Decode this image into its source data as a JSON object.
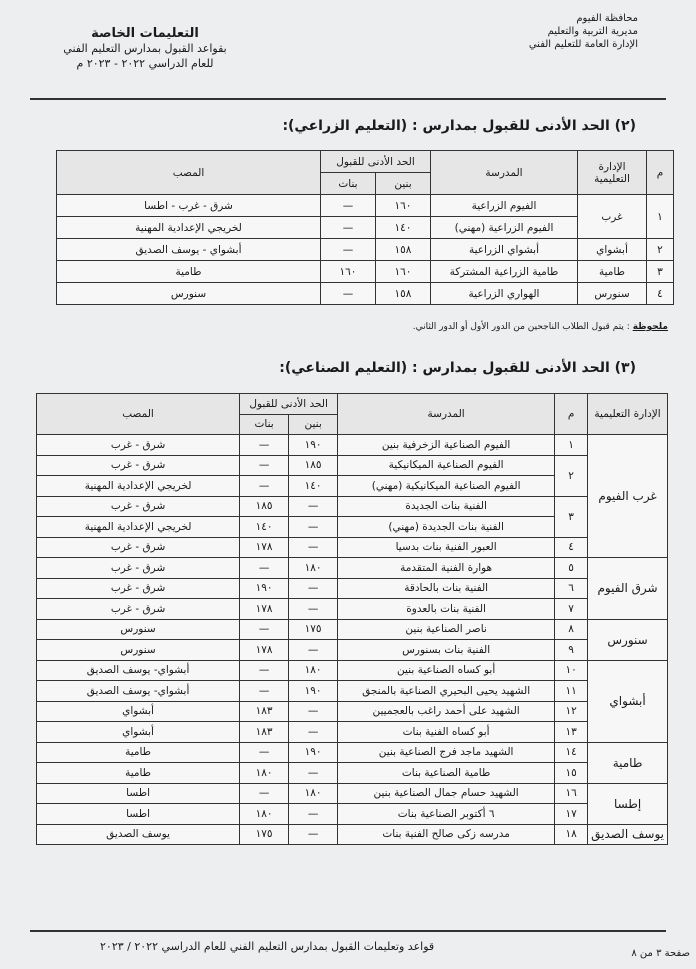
{
  "header": {
    "governorate": "محافظة الفيوم",
    "directorate": "مديرية التربية والتعليم",
    "administration": "الإدارة العامة للتعليم الفني",
    "title": "التعليمات الخاصة",
    "subtitle": "بقواعد القبول بمدارس التعليم الفني",
    "year": "للعام الدراسي ٢٠٢٢ - ٢٠٢٣ م"
  },
  "section2": {
    "title": "(٢) الحد الأدنى للقبول بمدارس : (التعليم الزراعي):",
    "table": {
      "headers": {
        "num": "م",
        "idara": "الإدارة التعليمية",
        "school": "المدرسة",
        "min": "الحد الأدنى للقبول",
        "boys": "بنين",
        "girls": "بنات",
        "dest": "المصب"
      },
      "groups": [
        {
          "num": "١",
          "idara": "غرب",
          "rows": [
            {
              "school": "الفيوم الزراعية",
              "boys": "١٦٠",
              "girls": "—",
              "dest": "شرق - غرب - اطسا"
            },
            {
              "school": "الفيوم الزراعية (مهني)",
              "boys": "١٤٠",
              "girls": "—",
              "dest": "لخريجي الإعدادية المهنية"
            }
          ]
        },
        {
          "num": "٢",
          "idara": "أبشواي",
          "rows": [
            {
              "school": "أبشواي الزراعية",
              "boys": "١٥٨",
              "girls": "—",
              "dest": "أبشواي - يوسف الصديق"
            }
          ]
        },
        {
          "num": "٣",
          "idara": "طامية",
          "rows": [
            {
              "school": "طامية الزراعية المشتركة",
              "boys": "١٦٠",
              "girls": "١٦٠",
              "dest": "طامية"
            }
          ]
        },
        {
          "num": "٤",
          "idara": "سنورس",
          "rows": [
            {
              "school": "الهواري الزراعية",
              "boys": "١٥٨",
              "girls": "—",
              "dest": "سنورس"
            }
          ]
        }
      ]
    },
    "note_label": "ملحوظة",
    "note": ": يتم قبول الطلاب الناجحين من الدور الأول أو الدور الثاني."
  },
  "section3": {
    "title": "(٣) الحد الأدنى للقبول بمدارس : (التعليم الصناعي):",
    "table": {
      "headers": {
        "idara": "الإدارة التعليمية",
        "num": "م",
        "school": "المدرسة",
        "min": "الحد الأدنى للقبول",
        "boys": "بنين",
        "girls": "بنات",
        "dest": "المصب"
      },
      "groups": [
        {
          "idara": "غرب الفيوم",
          "schools": [
            {
              "num": "١",
              "rows": [
                {
                  "school": "الفيوم الصناعية الزخرفية بنين",
                  "boys": "١٩٠",
                  "girls": "—",
                  "dest": "شرق - غرب"
                }
              ]
            },
            {
              "num": "٢",
              "rows": [
                {
                  "school": "الفيوم الصناعية الميكانيكية",
                  "boys": "١٨٥",
                  "girls": "—",
                  "dest": "شرق - غرب"
                },
                {
                  "school": "الفيوم الصناعية الميكانيكية (مهني)",
                  "boys": "١٤٠",
                  "girls": "—",
                  "dest": "لخريجي الإعدادية المهنية"
                }
              ]
            },
            {
              "num": "٣",
              "rows": [
                {
                  "school": "الفنية بنات الجديدة",
                  "boys": "—",
                  "girls": "١٨٥",
                  "dest": "شرق - غرب"
                },
                {
                  "school": "الفنية بنات الجديدة (مهني)",
                  "boys": "—",
                  "girls": "١٤٠",
                  "dest": "لخريجي الإعدادية المهنية"
                }
              ]
            },
            {
              "num": "٤",
              "rows": [
                {
                  "school": "العبور الفنية بنات بدسيا",
                  "boys": "—",
                  "girls": "١٧٨",
                  "dest": "شرق - غرب"
                }
              ]
            }
          ]
        },
        {
          "idara": "شرق الفيوم",
          "schools": [
            {
              "num": "٥",
              "rows": [
                {
                  "school": "هوارة الفنية المتقدمة",
                  "boys": "١٨٠",
                  "girls": "—",
                  "dest": "شرق - غرب"
                }
              ]
            },
            {
              "num": "٦",
              "rows": [
                {
                  "school": "الفنية بنات بالحادقة",
                  "boys": "—",
                  "girls": "١٩٠",
                  "dest": "شرق - غرب"
                }
              ]
            },
            {
              "num": "٧",
              "rows": [
                {
                  "school": "الفنية بنات بالعدوة",
                  "boys": "—",
                  "girls": "١٧٨",
                  "dest": "شرق - غرب"
                }
              ]
            }
          ]
        },
        {
          "idara": "سنورس",
          "schools": [
            {
              "num": "٨",
              "rows": [
                {
                  "school": "ناصر الصناعية بنين",
                  "boys": "١٧٥",
                  "girls": "—",
                  "dest": "سنورس"
                }
              ]
            },
            {
              "num": "٩",
              "rows": [
                {
                  "school": "الفنية بنات بسنورس",
                  "boys": "—",
                  "girls": "١٧٨",
                  "dest": "سنورس"
                }
              ]
            }
          ]
        },
        {
          "idara": "أبشواي",
          "schools": [
            {
              "num": "١٠",
              "rows": [
                {
                  "school": "أبو كساه الصناعية بنين",
                  "boys": "١٨٠",
                  "girls": "—",
                  "dest": "أبشواي- يوسف الصديق"
                }
              ]
            },
            {
              "num": "١١",
              "rows": [
                {
                  "school": "الشهيد يحيى البحيري الصناعية بالمنجق",
                  "boys": "١٩٠",
                  "girls": "—",
                  "dest": "أبشواي- يوسف الصديق"
                }
              ]
            },
            {
              "num": "١٢",
              "rows": [
                {
                  "school": "الشهيد على أحمد راغب بالعجميين",
                  "boys": "—",
                  "girls": "١٨٣",
                  "dest": "أبشواي"
                }
              ]
            },
            {
              "num": "١٣",
              "rows": [
                {
                  "school": "أبو كساه الفنية بنات",
                  "boys": "—",
                  "girls": "١٨٣",
                  "dest": "أبشواي"
                }
              ]
            }
          ]
        },
        {
          "idara": "طامية",
          "schools": [
            {
              "num": "١٤",
              "rows": [
                {
                  "school": "الشهيد ماجد فرج الصناعية بنين",
                  "boys": "١٩٠",
                  "girls": "—",
                  "dest": "طامية"
                }
              ]
            },
            {
              "num": "١٥",
              "rows": [
                {
                  "school": "طامية الصناعية بنات",
                  "boys": "—",
                  "girls": "١٨٠",
                  "dest": "طامية"
                }
              ]
            }
          ]
        },
        {
          "idara": "إطسا",
          "schools": [
            {
              "num": "١٦",
              "rows": [
                {
                  "school": "الشهيد حسام جمال الصناعية بنين",
                  "boys": "١٨٠",
                  "girls": "—",
                  "dest": "اطسا"
                }
              ]
            },
            {
              "num": "١٧",
              "rows": [
                {
                  "school": "٦ أكتوبر الصناعية بنات",
                  "boys": "—",
                  "girls": "١٨٠",
                  "dest": "اطسا"
                }
              ]
            }
          ]
        },
        {
          "idara": "يوسف الصديق",
          "schools": [
            {
              "num": "١٨",
              "rows": [
                {
                  "school": "مدرسه زكى صالح الفنية بنات",
                  "boys": "—",
                  "girls": "١٧٥",
                  "dest": "يوسف الصديق"
                }
              ]
            }
          ]
        }
      ]
    }
  },
  "footer": {
    "text": "قواعد وتعليمات القبول بمدارس التعليم الفني للعام الدراسي ٢٠٢٢ / ٢٠٢٣",
    "page": "صفحة ٣ من ٨"
  }
}
